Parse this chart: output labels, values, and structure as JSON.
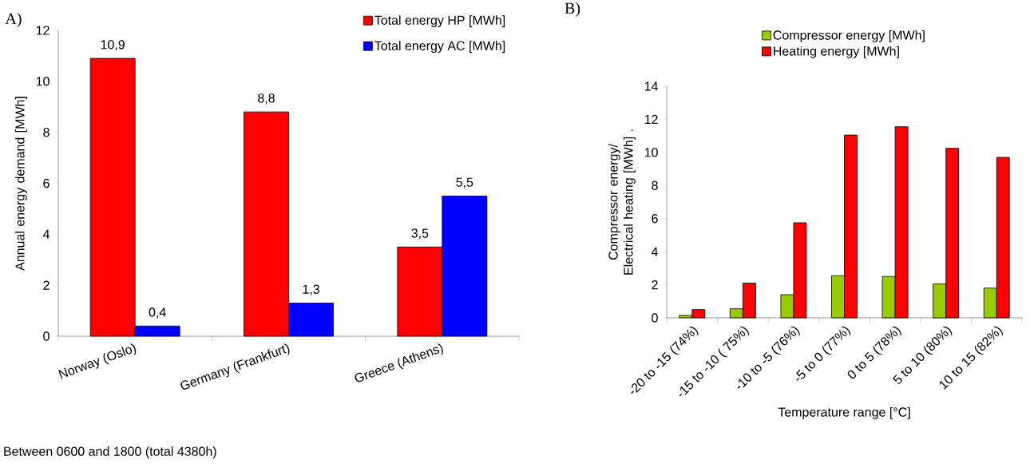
{
  "chart_data": [
    {
      "type": "bar",
      "title": "A)",
      "ylabel": "Annual energy demand [MWh]",
      "categories": [
        "Norway (Oslo)",
        "Germany (Frankfurt)",
        "Greece (Athens)"
      ],
      "series": [
        {
          "name": "Total energy HP [MWh]",
          "color": "#ff0000",
          "values": [
            10.9,
            8.8,
            3.5
          ],
          "value_labels": [
            "10,9",
            "8,8",
            "3,5"
          ]
        },
        {
          "name": "Total energy AC [MWh]",
          "color": "#0000ff",
          "values": [
            0.4,
            1.3,
            5.5
          ],
          "value_labels": [
            "0,4",
            "1,3",
            "5,5"
          ]
        }
      ],
      "ylim": [
        0,
        12
      ],
      "yticks": [
        0,
        2,
        4,
        6,
        8,
        10,
        12
      ],
      "legend": "top right",
      "annotations": [
        "Between 0600 and 1800 (total 4380h)"
      ]
    },
    {
      "type": "bar",
      "title": "B)",
      "ylabel": "Compressor energy/ Electrical heating [MWh] .",
      "xlabel": "Temperature range [°C]",
      "categories": [
        "-20 to -15 (74%)",
        "-15 to -10 ( 75%)",
        "-10 to -5  (76%)",
        "-5 to 0 (77%)",
        "0 to 5 (78%)",
        "5 to 10 (80%)",
        "10 to 15 (82%)"
      ],
      "series": [
        {
          "name": "Compressor energy [MWh]",
          "color": "#99cc00",
          "values": [
            0.15,
            0.55,
            1.4,
            2.55,
            2.5,
            2.05,
            1.8
          ]
        },
        {
          "name": "Heating energy [MWh]",
          "color": "#ff0000",
          "values": [
            0.5,
            2.1,
            5.75,
            11.05,
            11.55,
            10.25,
            9.7
          ]
        }
      ],
      "ylim": [
        0,
        14
      ],
      "yticks": [
        0,
        2,
        4,
        6,
        8,
        10,
        12,
        14
      ],
      "legend": "top"
    }
  ]
}
